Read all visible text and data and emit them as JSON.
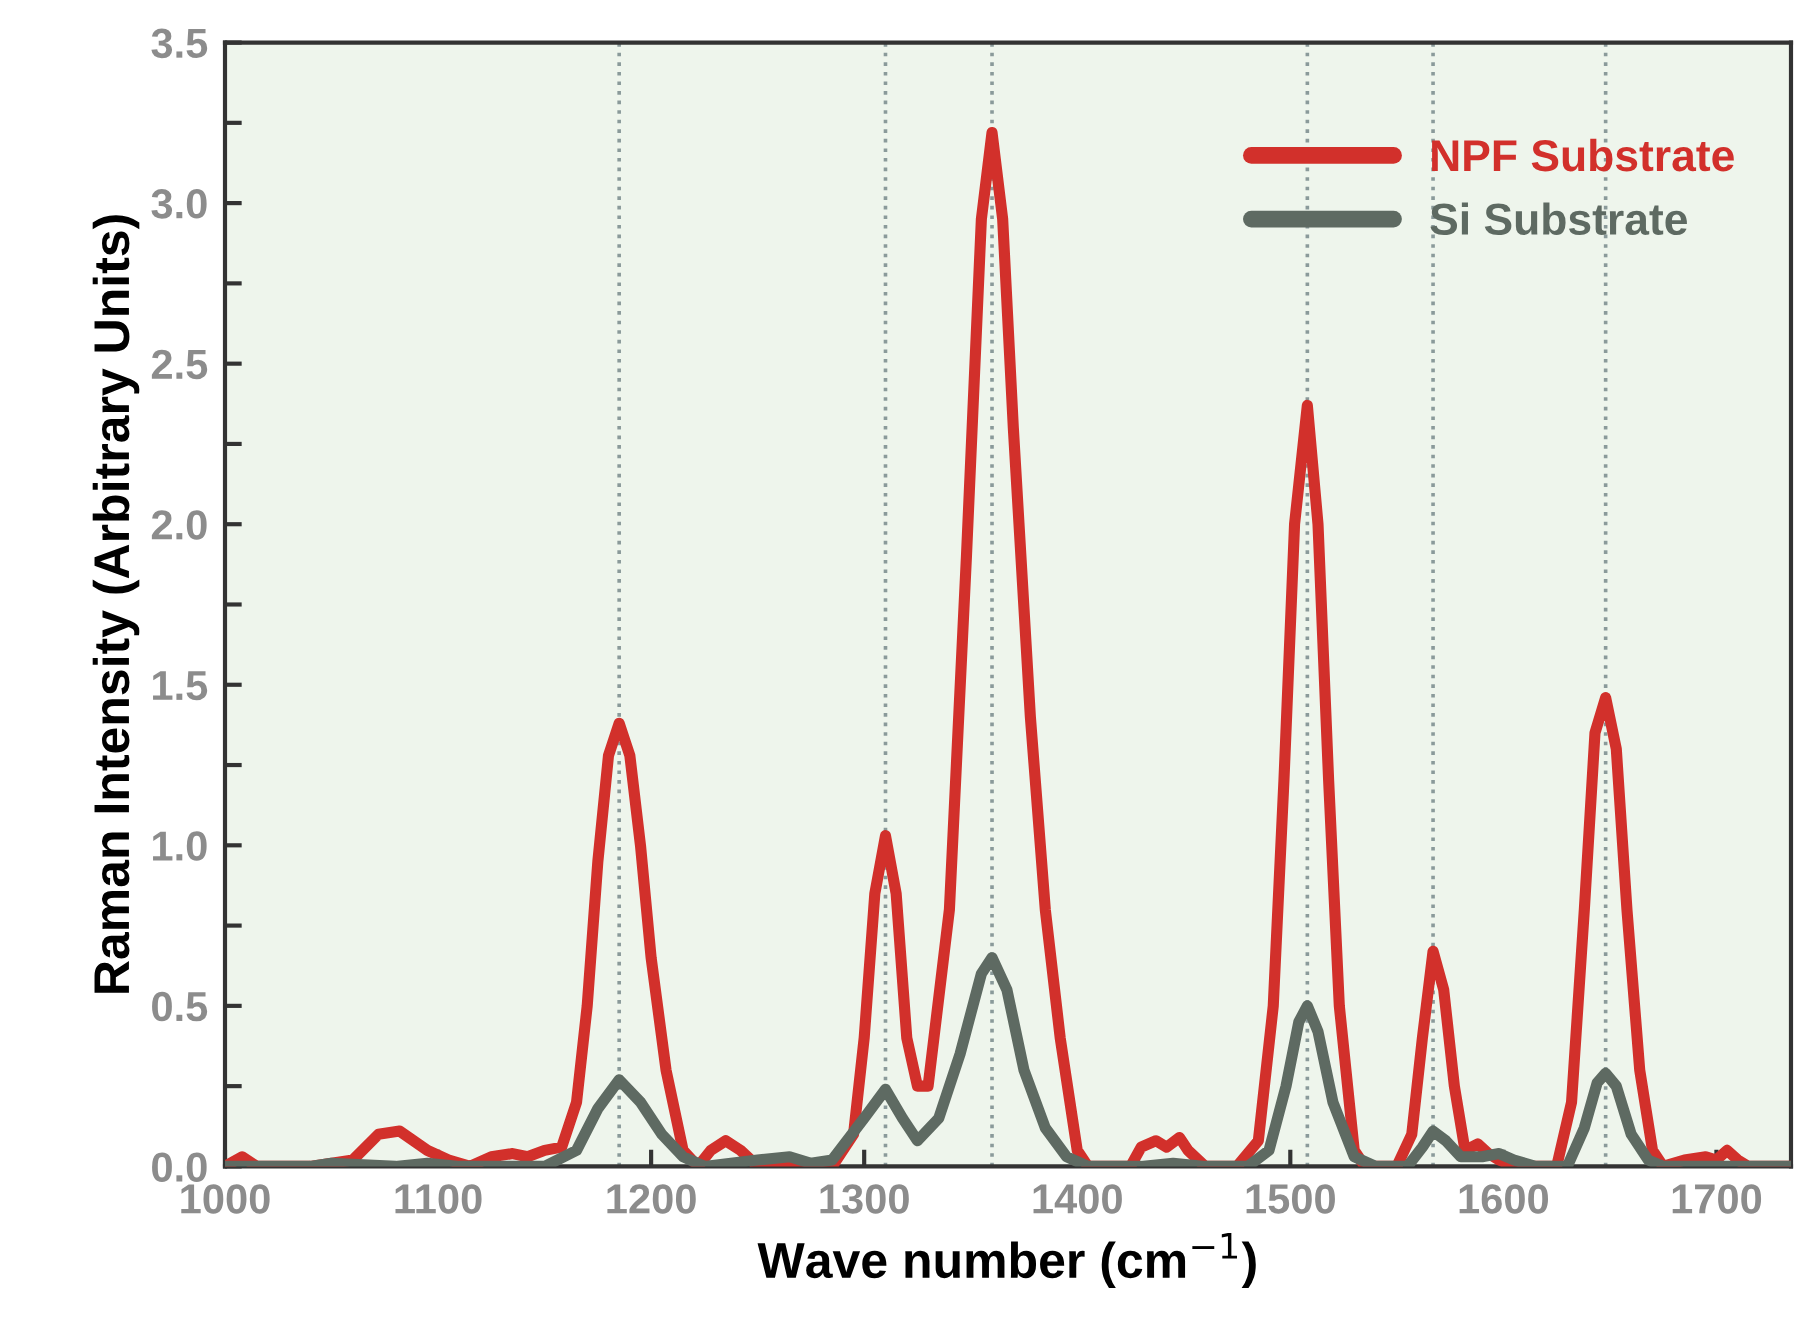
{
  "chart_data": {
    "type": "line",
    "xlabel": "Wave number (cm$^{−1}$)",
    "ylabel": "Raman Intensity (Arbitrary Units)",
    "xlim": [
      1000,
      1735
    ],
    "xticks": [
      1000,
      1100,
      1200,
      1300,
      1400,
      1500,
      1600,
      1700
    ],
    "ylim": [
      0,
      3.5
    ],
    "yticks": [
      {
        "value": 0,
        "label": "0.0"
      },
      {
        "value": 0.25,
        "label": null
      },
      0.5,
      {
        "value": 0.75,
        "label": null
      },
      {
        "value": 1,
        "label": "1.0"
      },
      {
        "value": 1.25,
        "label": null
      },
      1.5,
      {
        "value": 1.75,
        "label": null
      },
      {
        "value": 2,
        "label": "2.0"
      },
      {
        "value": 2.25,
        "label": null
      },
      2.5,
      {
        "value": 2.75,
        "label": null
      },
      {
        "value": 3,
        "label": "3.0"
      },
      {
        "value": 3.25,
        "label": null
      },
      3.5
    ],
    "grid": false,
    "legend": "top right",
    "marker": "none",
    "line_style": "solid",
    "ref_lines": [
      {
        "axis": "x",
        "value": 1185,
        "color": "#8a9a9a",
        "line_style": "dotted"
      },
      {
        "axis": "x",
        "value": 1310,
        "color": "#8a9a9a",
        "line_style": "dotted"
      },
      {
        "axis": "x",
        "value": 1360,
        "color": "#8a9a9a",
        "line_style": "dotted"
      },
      {
        "axis": "x",
        "value": 1508,
        "color": "#8a9a9a",
        "line_style": "dotted"
      },
      {
        "axis": "x",
        "value": 1567,
        "color": "#8a9a9a",
        "line_style": "dotted"
      },
      {
        "axis": "x",
        "value": 1648,
        "color": "#8a9a9a",
        "line_style": "dotted"
      }
    ],
    "series": [
      {
        "name": "NPF Substrate",
        "color": "#d2302b",
        "x": [
          1000,
          1008,
          1015,
          1040,
          1060,
          1072,
          1082,
          1095,
          1105,
          1115,
          1125,
          1135,
          1142,
          1150,
          1158,
          1165,
          1170,
          1175,
          1180,
          1185,
          1190,
          1195,
          1200,
          1207,
          1215,
          1222,
          1228,
          1235,
          1242,
          1250,
          1270,
          1285,
          1295,
          1300,
          1305,
          1310,
          1315,
          1320,
          1325,
          1330,
          1340,
          1348,
          1355,
          1360,
          1365,
          1370,
          1378,
          1385,
          1392,
          1400,
          1405,
          1425,
          1430,
          1437,
          1442,
          1448,
          1452,
          1460,
          1475,
          1485,
          1492,
          1497,
          1502,
          1508,
          1513,
          1518,
          1523,
          1530,
          1535,
          1550,
          1557,
          1562,
          1567,
          1572,
          1577,
          1582,
          1588,
          1593,
          1598,
          1605,
          1625,
          1632,
          1638,
          1643,
          1648,
          1653,
          1658,
          1664,
          1670,
          1675,
          1685,
          1695,
          1700,
          1705,
          1710,
          1715,
          1735
        ],
        "values": [
          0.0,
          0.03,
          0.0,
          0.0,
          0.02,
          0.1,
          0.11,
          0.05,
          0.02,
          0.0,
          0.03,
          0.04,
          0.03,
          0.05,
          0.06,
          0.2,
          0.5,
          0.95,
          1.28,
          1.38,
          1.28,
          1.0,
          0.65,
          0.3,
          0.05,
          0.0,
          0.05,
          0.08,
          0.05,
          0.0,
          0.0,
          0.0,
          0.1,
          0.4,
          0.85,
          1.03,
          0.85,
          0.4,
          0.25,
          0.25,
          0.8,
          1.9,
          2.95,
          3.22,
          2.95,
          2.3,
          1.4,
          0.8,
          0.4,
          0.05,
          0.0,
          0.0,
          0.06,
          0.08,
          0.06,
          0.09,
          0.05,
          0.0,
          0.0,
          0.08,
          0.5,
          1.2,
          2.0,
          2.37,
          2.0,
          1.2,
          0.5,
          0.05,
          0.0,
          0.0,
          0.1,
          0.4,
          0.67,
          0.55,
          0.25,
          0.05,
          0.07,
          0.04,
          0.02,
          0.0,
          0.0,
          0.2,
          0.8,
          1.35,
          1.46,
          1.3,
          0.8,
          0.3,
          0.05,
          0.0,
          0.02,
          0.03,
          0.02,
          0.05,
          0.02,
          0.0,
          0.0
        ]
      },
      {
        "name": "Si Substrate",
        "color": "#5e6a62",
        "x": [
          1000,
          1040,
          1050,
          1080,
          1095,
          1110,
          1150,
          1165,
          1175,
          1185,
          1195,
          1205,
          1215,
          1225,
          1250,
          1265,
          1275,
          1285,
          1300,
          1310,
          1318,
          1325,
          1335,
          1345,
          1355,
          1360,
          1367,
          1375,
          1385,
          1395,
          1405,
          1430,
          1445,
          1460,
          1480,
          1490,
          1498,
          1504,
          1508,
          1513,
          1520,
          1530,
          1540,
          1555,
          1562,
          1567,
          1573,
          1580,
          1590,
          1598,
          1605,
          1615,
          1630,
          1638,
          1644,
          1648,
          1653,
          1660,
          1668,
          1675,
          1735
        ],
        "values": [
          0.0,
          0.0,
          0.01,
          0.0,
          0.01,
          0.0,
          0.0,
          0.05,
          0.18,
          0.27,
          0.2,
          0.1,
          0.03,
          0.0,
          0.02,
          0.03,
          0.01,
          0.02,
          0.15,
          0.24,
          0.15,
          0.08,
          0.15,
          0.35,
          0.6,
          0.65,
          0.55,
          0.3,
          0.12,
          0.03,
          0.0,
          0.0,
          0.01,
          0.0,
          0.0,
          0.05,
          0.25,
          0.45,
          0.5,
          0.42,
          0.2,
          0.03,
          0.0,
          0.0,
          0.06,
          0.11,
          0.08,
          0.03,
          0.03,
          0.04,
          0.02,
          0.0,
          0.0,
          0.12,
          0.26,
          0.29,
          0.25,
          0.1,
          0.02,
          0.0,
          0.0
        ]
      }
    ]
  }
}
